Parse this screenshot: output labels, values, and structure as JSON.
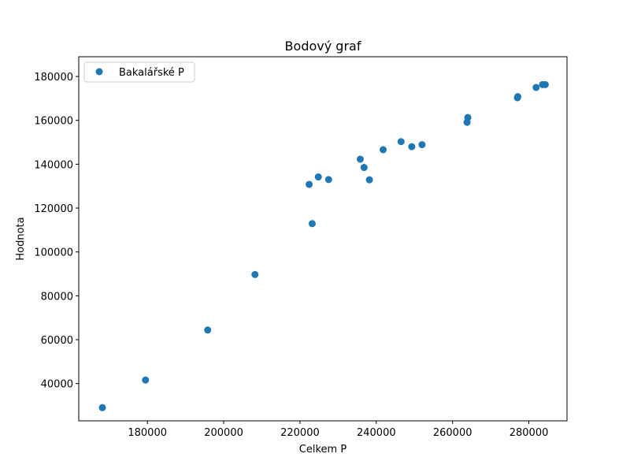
{
  "chart_data": {
    "type": "scatter",
    "title": "Bodový graf",
    "xlabel": "Celkem P",
    "ylabel": "Hodnota",
    "xlim": [
      162000,
      290000
    ],
    "ylim": [
      23000,
      189000
    ],
    "x_ticks": [
      180000,
      200000,
      220000,
      240000,
      260000,
      280000
    ],
    "y_ticks": [
      40000,
      60000,
      80000,
      100000,
      120000,
      140000,
      160000,
      180000
    ],
    "x_tick_labels": [
      "180000",
      "200000",
      "220000",
      "240000",
      "260000",
      "280000"
    ],
    "y_tick_labels": [
      "40000",
      "60000",
      "80000",
      "100000",
      "120000",
      "140000",
      "160000",
      "180000"
    ],
    "grid": false,
    "legend_position": "upper left",
    "series": [
      {
        "name": "Bakalářské P",
        "color": "#1f77b4",
        "points": [
          {
            "x": 168200,
            "y": 29000
          },
          {
            "x": 179500,
            "y": 41600
          },
          {
            "x": 195800,
            "y": 64400
          },
          {
            "x": 208200,
            "y": 89700
          },
          {
            "x": 222400,
            "y": 130800
          },
          {
            "x": 223200,
            "y": 112900
          },
          {
            "x": 224800,
            "y": 134200
          },
          {
            "x": 227500,
            "y": 133000
          },
          {
            "x": 235800,
            "y": 142300
          },
          {
            "x": 236800,
            "y": 138500
          },
          {
            "x": 238200,
            "y": 132900
          },
          {
            "x": 241800,
            "y": 146600
          },
          {
            "x": 246500,
            "y": 150300
          },
          {
            "x": 249300,
            "y": 148000
          },
          {
            "x": 252000,
            "y": 148900
          },
          {
            "x": 263800,
            "y": 159100
          },
          {
            "x": 264000,
            "y": 161300
          },
          {
            "x": 277000,
            "y": 170300
          },
          {
            "x": 277100,
            "y": 170800
          },
          {
            "x": 281900,
            "y": 175000
          },
          {
            "x": 283600,
            "y": 176300
          },
          {
            "x": 284300,
            "y": 176300
          }
        ]
      }
    ]
  }
}
